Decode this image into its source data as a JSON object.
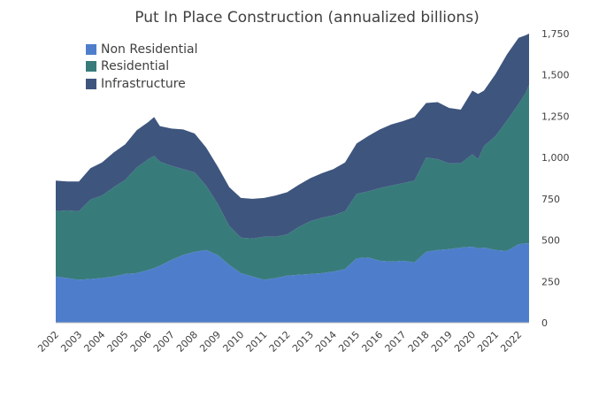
{
  "chart_data": {
    "type": "area",
    "stacked": true,
    "title": "Put In Place Construction (annualized billions)",
    "xlabel": "",
    "ylabel": "",
    "ylim": [
      0,
      1750
    ],
    "y_ticks": [
      0,
      250,
      500,
      750,
      "1,000",
      "1,250",
      "1,500",
      "1,750"
    ],
    "x_ticks": [
      "2002",
      "2003",
      "2004",
      "2005",
      "2006",
      "2007",
      "2008",
      "2009",
      "2010",
      "2011",
      "2012",
      "2013",
      "2014",
      "2015",
      "2016",
      "2017",
      "2018",
      "2019",
      "2020",
      "2021",
      "2022"
    ],
    "y_axis_side": "right",
    "grid": false,
    "legend_position": "top-left",
    "x": [
      2002.0,
      2002.5,
      2003.0,
      2003.5,
      2004.0,
      2004.5,
      2005.0,
      2005.5,
      2006.0,
      2006.25,
      2006.5,
      2007.0,
      2007.5,
      2008.0,
      2008.5,
      2009.0,
      2009.5,
      2010.0,
      2010.5,
      2011.0,
      2011.5,
      2012.0,
      2012.5,
      2013.0,
      2013.5,
      2014.0,
      2014.5,
      2015.0,
      2015.5,
      2016.0,
      2016.5,
      2017.0,
      2017.5,
      2018.0,
      2018.5,
      2019.0,
      2019.5,
      2020.0,
      2020.25,
      2020.5,
      2021.0,
      2021.5,
      2022.0,
      2022.3,
      2022.45
    ],
    "series": [
      {
        "name": "Non Residential",
        "values": [
          280,
          270,
          260,
          265,
          270,
          280,
          295,
          300,
          320,
          330,
          345,
          380,
          410,
          430,
          440,
          410,
          350,
          300,
          280,
          260,
          270,
          285,
          290,
          295,
          300,
          310,
          325,
          390,
          395,
          375,
          370,
          375,
          365,
          430,
          440,
          445,
          455,
          460,
          450,
          455,
          440,
          435,
          475,
          480,
          480
        ]
      },
      {
        "name": "Residential",
        "values": [
          395,
          410,
          415,
          480,
          500,
          540,
          570,
          640,
          670,
          680,
          630,
          570,
          520,
          480,
          390,
          310,
          235,
          215,
          230,
          260,
          250,
          250,
          290,
          320,
          335,
          340,
          350,
          390,
          400,
          440,
          460,
          470,
          495,
          570,
          550,
          520,
          510,
          560,
          540,
          615,
          690,
          790,
          850,
          910,
          960
        ]
      },
      {
        "name": "Infrastructure",
        "values": [
          185,
          175,
          180,
          190,
          200,
          210,
          215,
          225,
          225,
          235,
          215,
          225,
          240,
          235,
          230,
          225,
          235,
          240,
          240,
          235,
          250,
          255,
          255,
          260,
          270,
          280,
          295,
          305,
          335,
          355,
          370,
          375,
          385,
          330,
          345,
          335,
          325,
          385,
          395,
          335,
          375,
          400,
          400,
          350,
          310
        ]
      }
    ],
    "colors": [
      "#4E7ECB",
      "#387B7B",
      "#3E557E"
    ]
  }
}
